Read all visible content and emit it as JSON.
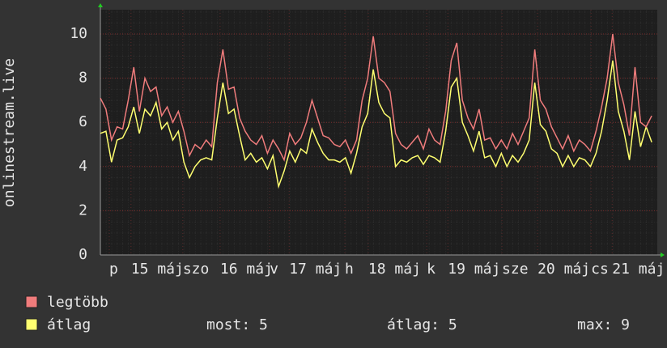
{
  "chart_data": {
    "type": "line",
    "y_label": "onlinestream.live",
    "xlim": [
      0,
      100
    ],
    "xticks": [
      {
        "value": 1.6,
        "label": "p"
      },
      {
        "value": 5.5,
        "label": "15 máj"
      },
      {
        "value": 14.8,
        "label": "szo"
      },
      {
        "value": 21.5,
        "label": "16 máj"
      },
      {
        "value": 30.4,
        "label": "v"
      },
      {
        "value": 33.9,
        "label": "17 máj"
      },
      {
        "value": 43.9,
        "label": "h"
      },
      {
        "value": 48.1,
        "label": "18 máj"
      },
      {
        "value": 58.6,
        "label": "k"
      },
      {
        "value": 62.4,
        "label": "19 máj"
      },
      {
        "value": 72.1,
        "label": "sze"
      },
      {
        "value": 78.5,
        "label": "20 máj"
      },
      {
        "value": 88.1,
        "label": "cs"
      },
      {
        "value": 91.9,
        "label": "21 máj"
      }
    ],
    "ylim": [
      0,
      11.1
    ],
    "yticks": [
      0,
      2,
      4,
      6,
      8,
      10
    ],
    "grid": true,
    "series": [
      {
        "name": "legtöbb",
        "color": "#f07c7c",
        "values": [
          7.1,
          6.6,
          5.2,
          5.8,
          5.7,
          7.0,
          8.5,
          6.5,
          8.0,
          7.4,
          7.6,
          6.3,
          6.7,
          6.0,
          6.5,
          5.6,
          4.5,
          5.0,
          4.8,
          5.2,
          4.9,
          7.8,
          9.3,
          7.5,
          7.6,
          6.2,
          5.6,
          5.2,
          5.0,
          5.4,
          4.6,
          5.2,
          4.8,
          4.3,
          5.5,
          5.0,
          5.3,
          6.0,
          7.0,
          6.2,
          5.4,
          5.3,
          5.0,
          4.9,
          5.2,
          4.6,
          5.2,
          7.0,
          8.0,
          9.9,
          8.0,
          7.8,
          7.4,
          5.5,
          5.0,
          4.8,
          5.1,
          5.4,
          4.8,
          5.7,
          5.2,
          5.0,
          6.5,
          8.8,
          9.6,
          7.0,
          6.2,
          5.7,
          6.6,
          5.2,
          5.3,
          4.8,
          5.2,
          4.8,
          5.5,
          5.0,
          5.6,
          6.2,
          9.3,
          7.0,
          6.6,
          5.8,
          5.3,
          4.8,
          5.4,
          4.7,
          5.2,
          5.0,
          4.7,
          5.6,
          6.7,
          8.0,
          10.0,
          7.8,
          6.8,
          5.4,
          8.5,
          6.0,
          5.8,
          6.3
        ]
      },
      {
        "name": "átlag",
        "color": "#ffff70",
        "values": [
          5.5,
          5.6,
          4.2,
          5.2,
          5.3,
          5.8,
          6.7,
          5.5,
          6.6,
          6.3,
          6.9,
          5.7,
          6.0,
          5.2,
          5.6,
          4.2,
          3.5,
          4.0,
          4.3,
          4.4,
          4.3,
          6.2,
          7.8,
          6.4,
          6.6,
          5.4,
          4.3,
          4.6,
          4.2,
          4.4,
          3.9,
          4.5,
          3.1,
          3.8,
          4.7,
          4.2,
          4.8,
          4.6,
          5.7,
          5.1,
          4.6,
          4.3,
          4.3,
          4.2,
          4.4,
          3.7,
          4.6,
          5.8,
          6.4,
          8.4,
          6.9,
          6.4,
          6.2,
          4.0,
          4.3,
          4.2,
          4.4,
          4.5,
          4.1,
          4.5,
          4.4,
          4.2,
          5.6,
          7.6,
          8.0,
          6.0,
          5.4,
          4.7,
          5.6,
          4.4,
          4.5,
          4.0,
          4.6,
          4.0,
          4.5,
          4.2,
          4.6,
          5.2,
          7.8,
          5.9,
          5.6,
          4.8,
          4.6,
          4.0,
          4.5,
          4.0,
          4.4,
          4.3,
          4.0,
          4.6,
          5.6,
          7.0,
          8.8,
          6.5,
          5.6,
          4.3,
          6.5,
          4.9,
          5.8,
          5.1
        ]
      }
    ],
    "stats": [
      "most: 5",
      "átlag: 5",
      "max: 9"
    ]
  }
}
